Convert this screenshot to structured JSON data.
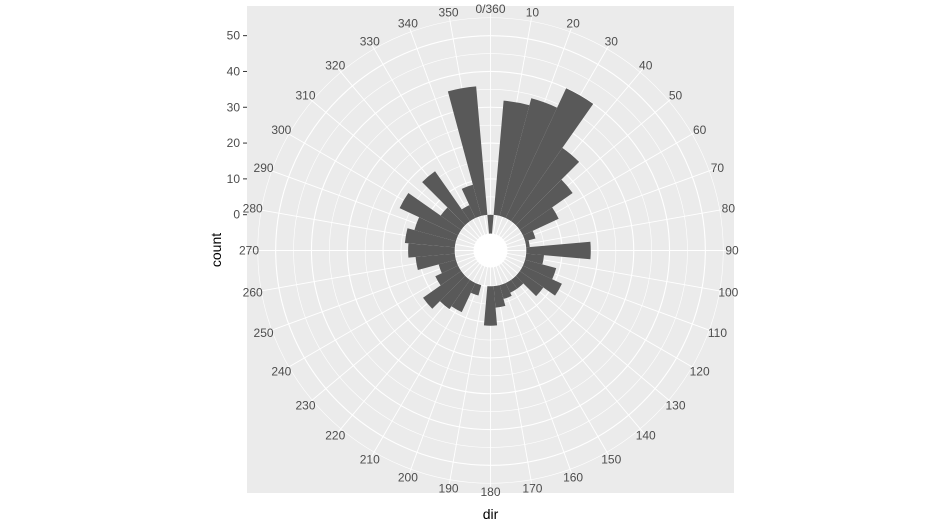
{
  "chart_data": {
    "type": "bar",
    "coord": "polar",
    "xlabel": "dir",
    "ylabel": "count",
    "x_ticks": [
      "0/360",
      "10",
      "20",
      "30",
      "40",
      "50",
      "60",
      "70",
      "80",
      "90",
      "100",
      "110",
      "120",
      "130",
      "140",
      "150",
      "160",
      "170",
      "180",
      "190",
      "200",
      "210",
      "220",
      "230",
      "240",
      "250",
      "260",
      "270",
      "280",
      "290",
      "300",
      "310",
      "320",
      "330",
      "340",
      "350"
    ],
    "y_ticks": [
      "0",
      "10",
      "20",
      "30",
      "40",
      "50"
    ],
    "ylim": [
      -10,
      58
    ],
    "grid": true,
    "categories": [
      0,
      10,
      20,
      30,
      40,
      50,
      60,
      70,
      80,
      90,
      100,
      110,
      120,
      130,
      140,
      150,
      160,
      170,
      180,
      190,
      200,
      210,
      220,
      230,
      240,
      250,
      260,
      270,
      280,
      290,
      300,
      310,
      320,
      330,
      340,
      350
    ],
    "values": [
      -9,
      32,
      34,
      40,
      25,
      18,
      11,
      3,
      1,
      18,
      5,
      9,
      12,
      8,
      3,
      3,
      4,
      6,
      11,
      0,
      3,
      9,
      10,
      13,
      7,
      5,
      11,
      13,
      14,
      12,
      18,
      7,
      17,
      4,
      9,
      36
    ],
    "colors": {
      "bar": "#595959",
      "panel": "#ebebeb",
      "grid": "#ffffff"
    }
  }
}
